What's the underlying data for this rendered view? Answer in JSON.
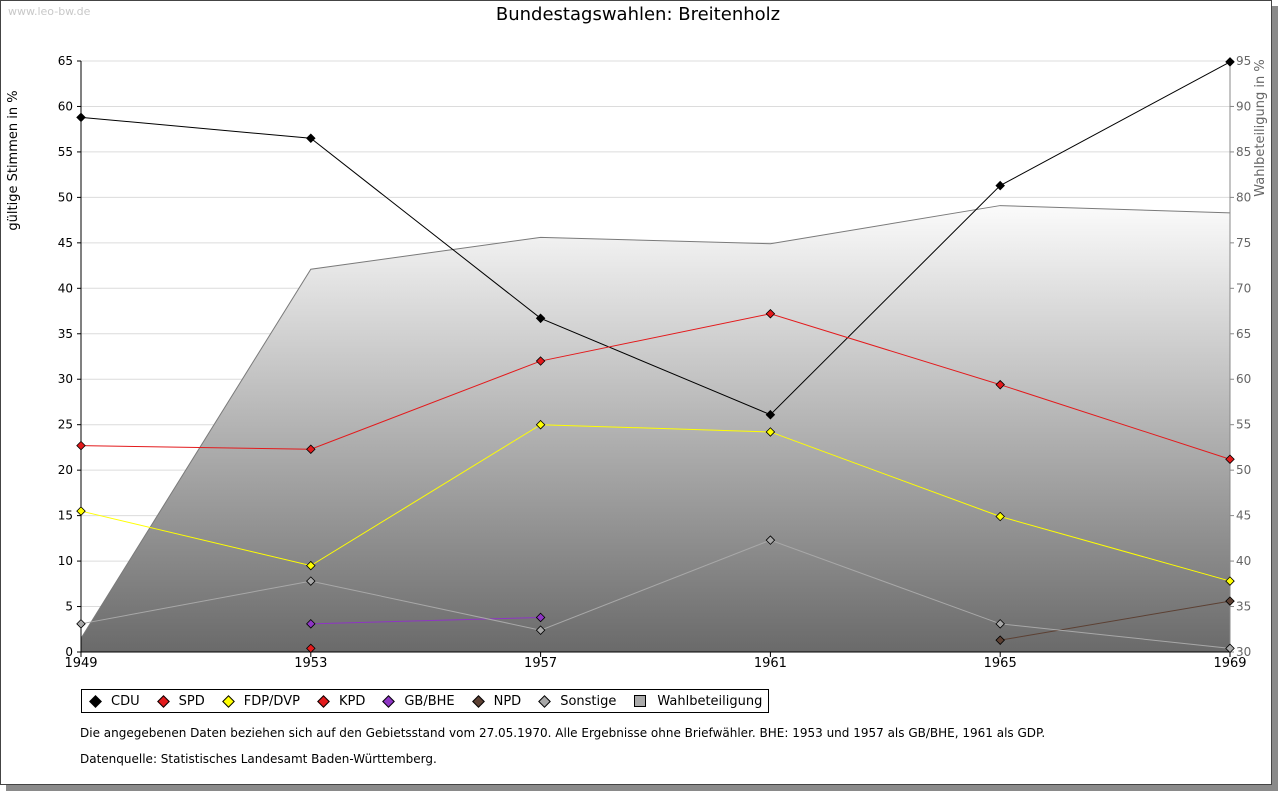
{
  "watermark": "www.leo-bw.de",
  "chart_data": {
    "type": "line",
    "title": "Bundestagswahlen: Breitenholz",
    "ylabel": "gültige Stimmen in %",
    "y2label": "Wahlbeteiligung in %",
    "x": [
      "1949",
      "1953",
      "1957",
      "1961",
      "1965",
      "1969"
    ],
    "ylim": [
      0,
      65
    ],
    "yticks": [
      0,
      5,
      10,
      15,
      20,
      25,
      30,
      35,
      40,
      45,
      50,
      55,
      60,
      65
    ],
    "y2lim": [
      30,
      95
    ],
    "y2ticks": [
      30,
      35,
      40,
      45,
      50,
      55,
      60,
      65,
      70,
      75,
      80,
      85,
      90,
      95
    ],
    "grid": true,
    "legend_position": "bottom",
    "series": [
      {
        "name": "CDU",
        "color": "#000000",
        "axis": "left",
        "values": [
          58.8,
          56.5,
          36.7,
          26.1,
          51.3,
          64.9
        ]
      },
      {
        "name": "SPD",
        "color": "#e31a1c",
        "axis": "left",
        "values": [
          22.7,
          22.3,
          32.0,
          37.2,
          29.4,
          21.2
        ]
      },
      {
        "name": "FDP/DVP",
        "color": "#ffff00",
        "axis": "left",
        "values": [
          15.5,
          9.5,
          25.0,
          24.2,
          14.9,
          7.8
        ]
      },
      {
        "name": "KPD",
        "color": "#e31a1c",
        "axis": "left",
        "values": [
          null,
          0.4,
          null,
          null,
          null,
          null
        ]
      },
      {
        "name": "GB/BHE",
        "color": "#8e35c4",
        "axis": "left",
        "values": [
          null,
          3.1,
          3.8,
          null,
          null,
          null
        ]
      },
      {
        "name": "NPD",
        "color": "#5c4033",
        "axis": "left",
        "values": [
          null,
          null,
          null,
          null,
          1.3,
          5.6
        ]
      },
      {
        "name": "Sonstige",
        "color": "#a8a8a8",
        "axis": "left",
        "values": [
          3.1,
          7.8,
          2.4,
          12.3,
          3.1,
          0.4
        ]
      },
      {
        "name": "Wahlbeteiligung",
        "color": "#a0a0a0",
        "axis": "right",
        "type": "area",
        "values": [
          31.5,
          72.1,
          75.6,
          74.9,
          79.1,
          78.3
        ]
      }
    ]
  },
  "footnote": "Die angegebenen Daten beziehen sich auf den Gebietsstand vom 27.05.1970. Alle Ergebnisse ohne Briefwähler. BHE: 1953 und 1957 als GB/BHE, 1961 als GDP.",
  "source": "Datenquelle: Statistisches Landesamt Baden-Württemberg."
}
